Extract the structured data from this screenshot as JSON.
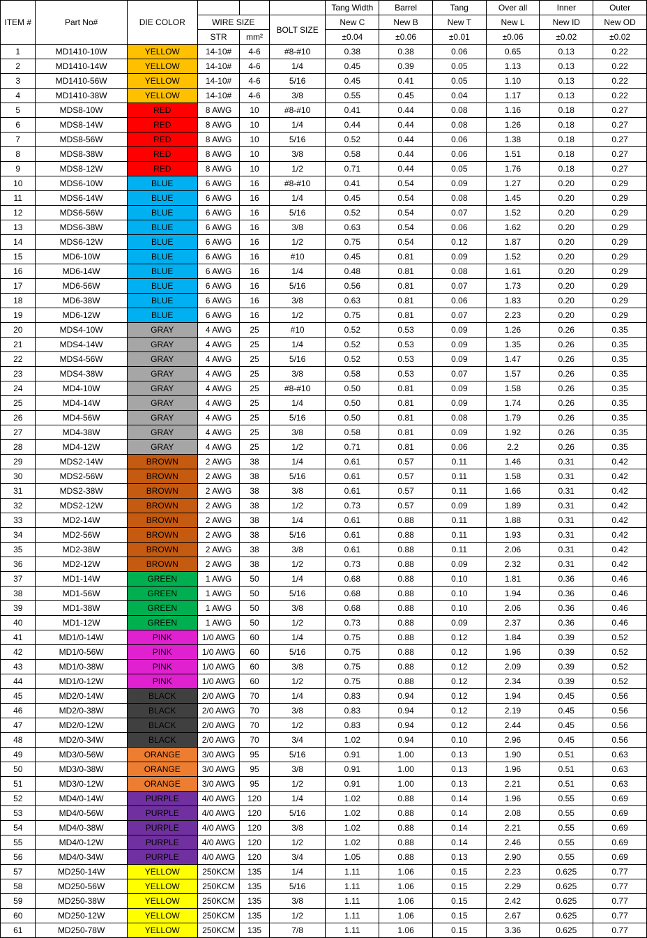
{
  "colors": {
    "YELLOW": "#ffc000",
    "RED": "#ff0000",
    "BLUE": "#00b0f0",
    "GRAY": "#a6a6a6",
    "BROWN": "#c55a11",
    "GREEN": "#00b050",
    "PINK": "#e021d0",
    "BLACK": "#404040",
    "ORANGE": "#ed7d31",
    "PURPLE": "#7030a0",
    "YELLOW2": "#ffff00"
  },
  "header": {
    "top": [
      "",
      "",
      "",
      "",
      "",
      "",
      "Tang Width",
      "Barrel",
      "Tang",
      "Over all",
      "Inner",
      "Outer"
    ],
    "item": "ITEM #",
    "part": "Part No#",
    "die": "DIE COLOR",
    "wire": "WIRE SIZE",
    "str": "STR",
    "mm2": "mm²",
    "bolt": "BOLT SIZE",
    "dims": [
      "New C",
      "New B",
      "New T",
      "New L",
      "New ID",
      "New OD"
    ],
    "tol": [
      "±0.04",
      "±0.06",
      "±0.01",
      "±0.06",
      "±0.02",
      "±0.02"
    ]
  },
  "rows": [
    {
      "item": 1,
      "part": "MD1410-10W",
      "die": "YELLOW",
      "dieKey": "YELLOW",
      "str": "14-10#",
      "mm2": "4-6",
      "bolt": "#8-#10",
      "c": "0.38",
      "b": "0.38",
      "t": "0.06",
      "l": "0.65",
      "id": "0.13",
      "od": "0.22"
    },
    {
      "item": 2,
      "part": "MD1410-14W",
      "die": "YELLOW",
      "dieKey": "YELLOW",
      "str": "14-10#",
      "mm2": "4-6",
      "bolt": "1/4",
      "c": "0.45",
      "b": "0.39",
      "t": "0.05",
      "l": "1.13",
      "id": "0.13",
      "od": "0.22"
    },
    {
      "item": 3,
      "part": "MD1410-56W",
      "die": "YELLOW",
      "dieKey": "YELLOW",
      "str": "14-10#",
      "mm2": "4-6",
      "bolt": "5/16",
      "c": "0.45",
      "b": "0.41",
      "t": "0.05",
      "l": "1.10",
      "id": "0.13",
      "od": "0.22"
    },
    {
      "item": 4,
      "part": "MD1410-38W",
      "die": "YELLOW",
      "dieKey": "YELLOW",
      "str": "14-10#",
      "mm2": "4-6",
      "bolt": "3/8",
      "c": "0.55",
      "b": "0.45",
      "t": "0.04",
      "l": "1.17",
      "id": "0.13",
      "od": "0.22"
    },
    {
      "item": 5,
      "part": "MDS8-10W",
      "die": "RED",
      "dieKey": "RED",
      "str": "8 AWG",
      "mm2": "10",
      "bolt": "#8-#10",
      "c": "0.41",
      "b": "0.44",
      "t": "0.08",
      "l": "1.16",
      "id": "0.18",
      "od": "0.27"
    },
    {
      "item": 6,
      "part": "MDS8-14W",
      "die": "RED",
      "dieKey": "RED",
      "str": "8 AWG",
      "mm2": "10",
      "bolt": "1/4",
      "c": "0.44",
      "b": "0.44",
      "t": "0.08",
      "l": "1.26",
      "id": "0.18",
      "od": "0.27"
    },
    {
      "item": 7,
      "part": "MDS8-56W",
      "die": "RED",
      "dieKey": "RED",
      "str": "8 AWG",
      "mm2": "10",
      "bolt": "5/16",
      "c": "0.52",
      "b": "0.44",
      "t": "0.06",
      "l": "1.38",
      "id": "0.18",
      "od": "0.27"
    },
    {
      "item": 8,
      "part": "MDS8-38W",
      "die": "RED",
      "dieKey": "RED",
      "str": "8 AWG",
      "mm2": "10",
      "bolt": "3/8",
      "c": "0.58",
      "b": "0.44",
      "t": "0.06",
      "l": "1.51",
      "id": "0.18",
      "od": "0.27"
    },
    {
      "item": 9,
      "part": "MDS8-12W",
      "die": "RED",
      "dieKey": "RED",
      "str": "8 AWG",
      "mm2": "10",
      "bolt": "1/2",
      "c": "0.71",
      "b": "0.44",
      "t": "0.05",
      "l": "1.76",
      "id": "0.18",
      "od": "0.27"
    },
    {
      "item": 10,
      "part": "MDS6-10W",
      "die": "BLUE",
      "dieKey": "BLUE",
      "str": "6 AWG",
      "mm2": "16",
      "bolt": "#8-#10",
      "c": "0.41",
      "b": "0.54",
      "t": "0.09",
      "l": "1.27",
      "id": "0.20",
      "od": "0.29"
    },
    {
      "item": 11,
      "part": "MDS6-14W",
      "die": "BLUE",
      "dieKey": "BLUE",
      "str": "6 AWG",
      "mm2": "16",
      "bolt": "1/4",
      "c": "0.45",
      "b": "0.54",
      "t": "0.08",
      "l": "1.45",
      "id": "0.20",
      "od": "0.29"
    },
    {
      "item": 12,
      "part": "MDS6-56W",
      "die": "BLUE",
      "dieKey": "BLUE",
      "str": "6 AWG",
      "mm2": "16",
      "bolt": "5/16",
      "c": "0.52",
      "b": "0.54",
      "t": "0.07",
      "l": "1.52",
      "id": "0.20",
      "od": "0.29"
    },
    {
      "item": 13,
      "part": "MDS6-38W",
      "die": "BLUE",
      "dieKey": "BLUE",
      "str": "6 AWG",
      "mm2": "16",
      "bolt": "3/8",
      "c": "0.63",
      "b": "0.54",
      "t": "0.06",
      "l": "1.62",
      "id": "0.20",
      "od": "0.29"
    },
    {
      "item": 14,
      "part": "MDS6-12W",
      "die": "BLUE",
      "dieKey": "BLUE",
      "str": "6 AWG",
      "mm2": "16",
      "bolt": "1/2",
      "c": "0.75",
      "b": "0.54",
      "t": "0.12",
      "l": "1.87",
      "id": "0.20",
      "od": "0.29"
    },
    {
      "item": 15,
      "part": "MD6-10W",
      "die": "BLUE",
      "dieKey": "BLUE",
      "str": "6 AWG",
      "mm2": "16",
      "bolt": "#10",
      "c": "0.45",
      "b": "0.81",
      "t": "0.09",
      "l": "1.52",
      "id": "0.20",
      "od": "0.29"
    },
    {
      "item": 16,
      "part": "MD6-14W",
      "die": "BLUE",
      "dieKey": "BLUE",
      "str": "6 AWG",
      "mm2": "16",
      "bolt": "1/4",
      "c": "0.48",
      "b": "0.81",
      "t": "0.08",
      "l": "1.61",
      "id": "0.20",
      "od": "0.29"
    },
    {
      "item": 17,
      "part": "MD6-56W",
      "die": "BLUE",
      "dieKey": "BLUE",
      "str": "6 AWG",
      "mm2": "16",
      "bolt": "5/16",
      "c": "0.56",
      "b": "0.81",
      "t": "0.07",
      "l": "1.73",
      "id": "0.20",
      "od": "0.29"
    },
    {
      "item": 18,
      "part": "MD6-38W",
      "die": "BLUE",
      "dieKey": "BLUE",
      "str": "6 AWG",
      "mm2": "16",
      "bolt": "3/8",
      "c": "0.63",
      "b": "0.81",
      "t": "0.06",
      "l": "1.83",
      "id": "0.20",
      "od": "0.29"
    },
    {
      "item": 19,
      "part": "MD6-12W",
      "die": "BLUE",
      "dieKey": "BLUE",
      "str": "6 AWG",
      "mm2": "16",
      "bolt": "1/2",
      "c": "0.75",
      "b": "0.81",
      "t": "0.07",
      "l": "2.23",
      "id": "0.20",
      "od": "0.29"
    },
    {
      "item": 20,
      "part": "MDS4-10W",
      "die": "GRAY",
      "dieKey": "GRAY",
      "str": "4 AWG",
      "mm2": "25",
      "bolt": "#10",
      "c": "0.52",
      "b": "0.53",
      "t": "0.09",
      "l": "1.26",
      "id": "0.26",
      "od": "0.35"
    },
    {
      "item": 21,
      "part": "MDS4-14W",
      "die": "GRAY",
      "dieKey": "GRAY",
      "str": "4 AWG",
      "mm2": "25",
      "bolt": "1/4",
      "c": "0.52",
      "b": "0.53",
      "t": "0.09",
      "l": "1.35",
      "id": "0.26",
      "od": "0.35"
    },
    {
      "item": 22,
      "part": "MDS4-56W",
      "die": "GRAY",
      "dieKey": "GRAY",
      "str": "4 AWG",
      "mm2": "25",
      "bolt": "5/16",
      "c": "0.52",
      "b": "0.53",
      "t": "0.09",
      "l": "1.47",
      "id": "0.26",
      "od": "0.35"
    },
    {
      "item": 23,
      "part": "MDS4-38W",
      "die": "GRAY",
      "dieKey": "GRAY",
      "str": "4 AWG",
      "mm2": "25",
      "bolt": "3/8",
      "c": "0.58",
      "b": "0.53",
      "t": "0.07",
      "l": "1.57",
      "id": "0.26",
      "od": "0.35"
    },
    {
      "item": 24,
      "part": "MD4-10W",
      "die": "GRAY",
      "dieKey": "GRAY",
      "str": "4 AWG",
      "mm2": "25",
      "bolt": "#8-#10",
      "c": "0.50",
      "b": "0.81",
      "t": "0.09",
      "l": "1.58",
      "id": "0.26",
      "od": "0.35"
    },
    {
      "item": 25,
      "part": "MD4-14W",
      "die": "GRAY",
      "dieKey": "GRAY",
      "str": "4 AWG",
      "mm2": "25",
      "bolt": "1/4",
      "c": "0.50",
      "b": "0.81",
      "t": "0.09",
      "l": "1.74",
      "id": "0.26",
      "od": "0.35"
    },
    {
      "item": 26,
      "part": "MD4-56W",
      "die": "GRAY",
      "dieKey": "GRAY",
      "str": "4 AWG",
      "mm2": "25",
      "bolt": "5/16",
      "c": "0.50",
      "b": "0.81",
      "t": "0.08",
      "l": "1.79",
      "id": "0.26",
      "od": "0.35"
    },
    {
      "item": 27,
      "part": "MD4-38W",
      "die": "GRAY",
      "dieKey": "GRAY",
      "str": "4 AWG",
      "mm2": "25",
      "bolt": "3/8",
      "c": "0.58",
      "b": "0.81",
      "t": "0.09",
      "l": "1.92",
      "id": "0.26",
      "od": "0.35"
    },
    {
      "item": 28,
      "part": "MD4-12W",
      "die": "GRAY",
      "dieKey": "GRAY",
      "str": "4 AWG",
      "mm2": "25",
      "bolt": "1/2",
      "c": "0.71",
      "b": "0.81",
      "t": "0.06",
      "l": "2.2",
      "id": "0.26",
      "od": "0.35"
    },
    {
      "item": 29,
      "part": "MDS2-14W",
      "die": "BROWN",
      "dieKey": "BROWN",
      "str": "2 AWG",
      "mm2": "38",
      "bolt": "1/4",
      "c": "0.61",
      "b": "0.57",
      "t": "0.11",
      "l": "1.46",
      "id": "0.31",
      "od": "0.42"
    },
    {
      "item": 30,
      "part": "MDS2-56W",
      "die": "BROWN",
      "dieKey": "BROWN",
      "str": "2 AWG",
      "mm2": "38",
      "bolt": "5/16",
      "c": "0.61",
      "b": "0.57",
      "t": "0.11",
      "l": "1.58",
      "id": "0.31",
      "od": "0.42"
    },
    {
      "item": 31,
      "part": "MDS2-38W",
      "die": "BROWN",
      "dieKey": "BROWN",
      "str": "2 AWG",
      "mm2": "38",
      "bolt": "3/8",
      "c": "0.61",
      "b": "0.57",
      "t": "0.11",
      "l": "1.66",
      "id": "0.31",
      "od": "0.42"
    },
    {
      "item": 32,
      "part": "MDS2-12W",
      "die": "BROWN",
      "dieKey": "BROWN",
      "str": "2 AWG",
      "mm2": "38",
      "bolt": "1/2",
      "c": "0.73",
      "b": "0.57",
      "t": "0.09",
      "l": "1.89",
      "id": "0.31",
      "od": "0.42"
    },
    {
      "item": 33,
      "part": "MD2-14W",
      "die": "BROWN",
      "dieKey": "BROWN",
      "str": "2 AWG",
      "mm2": "38",
      "bolt": "1/4",
      "c": "0.61",
      "b": "0.88",
      "t": "0.11",
      "l": "1.88",
      "id": "0.31",
      "od": "0.42"
    },
    {
      "item": 34,
      "part": "MD2-56W",
      "die": "BROWN",
      "dieKey": "BROWN",
      "str": "2 AWG",
      "mm2": "38",
      "bolt": "5/16",
      "c": "0.61",
      "b": "0.88",
      "t": "0.11",
      "l": "1.93",
      "id": "0.31",
      "od": "0.42"
    },
    {
      "item": 35,
      "part": "MD2-38W",
      "die": "BROWN",
      "dieKey": "BROWN",
      "str": "2 AWG",
      "mm2": "38",
      "bolt": "3/8",
      "c": "0.61",
      "b": "0.88",
      "t": "0.11",
      "l": "2.06",
      "id": "0.31",
      "od": "0.42"
    },
    {
      "item": 36,
      "part": "MD2-12W",
      "die": "BROWN",
      "dieKey": "BROWN",
      "str": "2 AWG",
      "mm2": "38",
      "bolt": "1/2",
      "c": "0.73",
      "b": "0.88",
      "t": "0.09",
      "l": "2.32",
      "id": "0.31",
      "od": "0.42"
    },
    {
      "item": 37,
      "part": "MD1-14W",
      "die": "GREEN",
      "dieKey": "GREEN",
      "str": "1 AWG",
      "mm2": "50",
      "bolt": "1/4",
      "c": "0.68",
      "b": "0.88",
      "t": "0.10",
      "l": "1.81",
      "id": "0.36",
      "od": "0.46"
    },
    {
      "item": 38,
      "part": "MD1-56W",
      "die": "GREEN",
      "dieKey": "GREEN",
      "str": "1 AWG",
      "mm2": "50",
      "bolt": "5/16",
      "c": "0.68",
      "b": "0.88",
      "t": "0.10",
      "l": "1.94",
      "id": "0.36",
      "od": "0.46"
    },
    {
      "item": 39,
      "part": "MD1-38W",
      "die": "GREEN",
      "dieKey": "GREEN",
      "str": "1 AWG",
      "mm2": "50",
      "bolt": "3/8",
      "c": "0.68",
      "b": "0.88",
      "t": "0.10",
      "l": "2.06",
      "id": "0.36",
      "od": "0.46"
    },
    {
      "item": 40,
      "part": "MD1-12W",
      "die": "GREEN",
      "dieKey": "GREEN",
      "str": "1 AWG",
      "mm2": "50",
      "bolt": "1/2",
      "c": "0.73",
      "b": "0.88",
      "t": "0.09",
      "l": "2.37",
      "id": "0.36",
      "od": "0.46"
    },
    {
      "item": 41,
      "part": "MD1/0-14W",
      "die": "PINK",
      "dieKey": "PINK",
      "str": "1/0 AWG",
      "mm2": "60",
      "bolt": "1/4",
      "c": "0.75",
      "b": "0.88",
      "t": "0.12",
      "l": "1.84",
      "id": "0.39",
      "od": "0.52"
    },
    {
      "item": 42,
      "part": "MD1/0-56W",
      "die": "PINK",
      "dieKey": "PINK",
      "str": "1/0 AWG",
      "mm2": "60",
      "bolt": "5/16",
      "c": "0.75",
      "b": "0.88",
      "t": "0.12",
      "l": "1.96",
      "id": "0.39",
      "od": "0.52"
    },
    {
      "item": 43,
      "part": "MD1/0-38W",
      "die": "PINK",
      "dieKey": "PINK",
      "str": "1/0 AWG",
      "mm2": "60",
      "bolt": "3/8",
      "c": "0.75",
      "b": "0.88",
      "t": "0.12",
      "l": "2.09",
      "id": "0.39",
      "od": "0.52"
    },
    {
      "item": 44,
      "part": "MD1/0-12W",
      "die": "PINK",
      "dieKey": "PINK",
      "str": "1/0 AWG",
      "mm2": "60",
      "bolt": "1/2",
      "c": "0.75",
      "b": "0.88",
      "t": "0.12",
      "l": "2.34",
      "id": "0.39",
      "od": "0.52"
    },
    {
      "item": 45,
      "part": "MD2/0-14W",
      "die": "BLACK",
      "dieKey": "BLACK",
      "str": "2/0 AWG",
      "mm2": "70",
      "bolt": "1/4",
      "c": "0.83",
      "b": "0.94",
      "t": "0.12",
      "l": "1.94",
      "id": "0.45",
      "od": "0.56"
    },
    {
      "item": 46,
      "part": "MD2/0-38W",
      "die": "BLACK",
      "dieKey": "BLACK",
      "str": "2/0 AWG",
      "mm2": "70",
      "bolt": "3/8",
      "c": "0.83",
      "b": "0.94",
      "t": "0.12",
      "l": "2.19",
      "id": "0.45",
      "od": "0.56"
    },
    {
      "item": 47,
      "part": "MD2/0-12W",
      "die": "BLACK",
      "dieKey": "BLACK",
      "str": "2/0 AWG",
      "mm2": "70",
      "bolt": "1/2",
      "c": "0.83",
      "b": "0.94",
      "t": "0.12",
      "l": "2.44",
      "id": "0.45",
      "od": "0.56"
    },
    {
      "item": 48,
      "part": "MD2/0-34W",
      "die": "BLACK",
      "dieKey": "BLACK",
      "str": "2/0 AWG",
      "mm2": "70",
      "bolt": "3/4",
      "c": "1.02",
      "b": "0.94",
      "t": "0.10",
      "l": "2.96",
      "id": "0.45",
      "od": "0.56"
    },
    {
      "item": 49,
      "part": "MD3/0-56W",
      "die": "ORANGE",
      "dieKey": "ORANGE",
      "str": "3/0 AWG",
      "mm2": "95",
      "bolt": "5/16",
      "c": "0.91",
      "b": "1.00",
      "t": "0.13",
      "l": "1.90",
      "id": "0.51",
      "od": "0.63"
    },
    {
      "item": 50,
      "part": "MD3/0-38W",
      "die": "ORANGE",
      "dieKey": "ORANGE",
      "str": "3/0 AWG",
      "mm2": "95",
      "bolt": "3/8",
      "c": "0.91",
      "b": "1.00",
      "t": "0.13",
      "l": "1.96",
      "id": "0.51",
      "od": "0.63"
    },
    {
      "item": 51,
      "part": "MD3/0-12W",
      "die": "ORANGE",
      "dieKey": "ORANGE",
      "str": "3/0 AWG",
      "mm2": "95",
      "bolt": "1/2",
      "c": "0.91",
      "b": "1.00",
      "t": "0.13",
      "l": "2.21",
      "id": "0.51",
      "od": "0.63"
    },
    {
      "item": 52,
      "part": "MD4/0-14W",
      "die": "PURPLE",
      "dieKey": "PURPLE",
      "str": "4/0 AWG",
      "mm2": "120",
      "bolt": "1/4",
      "c": "1.02",
      "b": "0.88",
      "t": "0.14",
      "l": "1.96",
      "id": "0.55",
      "od": "0.69"
    },
    {
      "item": 53,
      "part": "MD4/0-56W",
      "die": "PURPLE",
      "dieKey": "PURPLE",
      "str": "4/0 AWG",
      "mm2": "120",
      "bolt": "5/16",
      "c": "1.02",
      "b": "0.88",
      "t": "0.14",
      "l": "2.08",
      "id": "0.55",
      "od": "0.69"
    },
    {
      "item": 54,
      "part": "MD4/0-38W",
      "die": "PURPLE",
      "dieKey": "PURPLE",
      "str": "4/0 AWG",
      "mm2": "120",
      "bolt": "3/8",
      "c": "1.02",
      "b": "0.88",
      "t": "0.14",
      "l": "2.21",
      "id": "0.55",
      "od": "0.69"
    },
    {
      "item": 55,
      "part": "MD4/0-12W",
      "die": "PURPLE",
      "dieKey": "PURPLE",
      "str": "4/0 AWG",
      "mm2": "120",
      "bolt": "1/2",
      "c": "1.02",
      "b": "0.88",
      "t": "0.14",
      "l": "2.46",
      "id": "0.55",
      "od": "0.69"
    },
    {
      "item": 56,
      "part": "MD4/0-34W",
      "die": "PURPLE",
      "dieKey": "PURPLE",
      "str": "4/0 AWG",
      "mm2": "120",
      "bolt": "3/4",
      "c": "1.05",
      "b": "0.88",
      "t": "0.13",
      "l": "2.90",
      "id": "0.55",
      "od": "0.69"
    },
    {
      "item": 57,
      "part": "MD250-14W",
      "die": "YELLOW",
      "dieKey": "YELLOW2",
      "str": "250KCM",
      "mm2": "135",
      "bolt": "1/4",
      "c": "1.11",
      "b": "1.06",
      "t": "0.15",
      "l": "2.23",
      "id": "0.625",
      "od": "0.77"
    },
    {
      "item": 58,
      "part": "MD250-56W",
      "die": "YELLOW",
      "dieKey": "YELLOW2",
      "str": "250KCM",
      "mm2": "135",
      "bolt": "5/16",
      "c": "1.11",
      "b": "1.06",
      "t": "0.15",
      "l": "2.29",
      "id": "0.625",
      "od": "0.77"
    },
    {
      "item": 59,
      "part": "MD250-38W",
      "die": "YELLOW",
      "dieKey": "YELLOW2",
      "str": "250KCM",
      "mm2": "135",
      "bolt": "3/8",
      "c": "1.11",
      "b": "1.06",
      "t": "0.15",
      "l": "2.42",
      "id": "0.625",
      "od": "0.77"
    },
    {
      "item": 60,
      "part": "MD250-12W",
      "die": "YELLOW",
      "dieKey": "YELLOW2",
      "str": "250KCM",
      "mm2": "135",
      "bolt": "1/2",
      "c": "1.11",
      "b": "1.06",
      "t": "0.15",
      "l": "2.67",
      "id": "0.625",
      "od": "0.77"
    },
    {
      "item": 61,
      "part": "MD250-78W",
      "die": "YELLOW",
      "dieKey": "YELLOW2",
      "str": "250KCM",
      "mm2": "135",
      "bolt": "7/8",
      "c": "1.11",
      "b": "1.06",
      "t": "0.15",
      "l": "3.36",
      "id": "0.625",
      "od": "0.77"
    }
  ]
}
